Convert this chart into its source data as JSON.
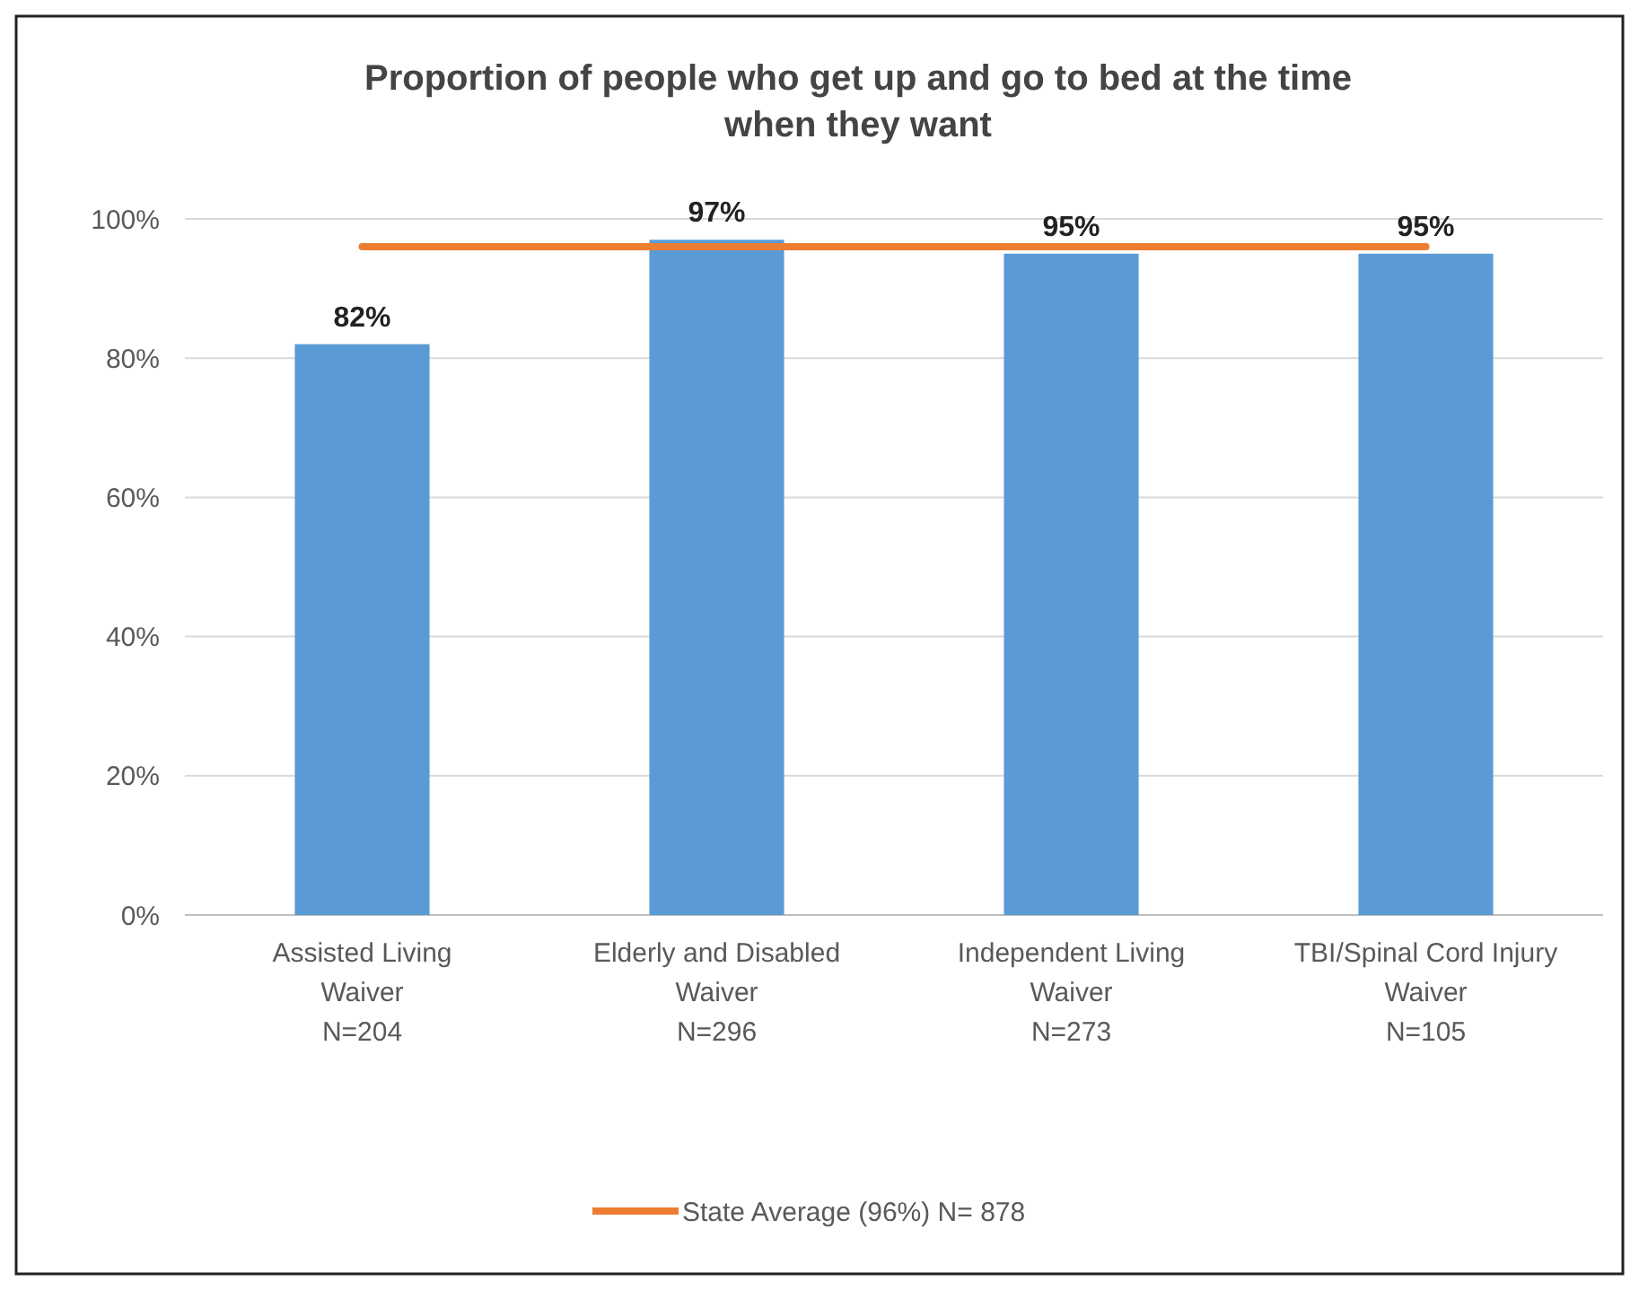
{
  "chart_data": {
    "type": "bar",
    "title": "Proportion of people who get up and go to bed at the time when they want",
    "categories": [
      "Assisted Living\nWaiver\nN=204",
      "Elderly and Disabled\nWaiver\nN=296",
      "Independent Living\nWaiver\nN=273",
      "TBI/Spinal Cord Injury\nWaiver\nN=105"
    ],
    "series": [
      {
        "color": "#5b9bd5",
        "values": [
          82,
          97,
          95,
          95
        ],
        "value_labels": [
          "82%",
          "97%",
          "95%",
          "95%"
        ]
      },
      {
        "type": "line",
        "name": "State Average (96%) N= 878",
        "color": "#ed7d31",
        "values": [
          96,
          96,
          96,
          96
        ]
      }
    ],
    "ylim": [
      0,
      100
    ],
    "yticks": [
      {
        "value": 0,
        "label": "0%"
      },
      {
        "value": 20,
        "label": "20%"
      },
      {
        "value": 40,
        "label": "40%"
      },
      {
        "value": 60,
        "label": "60%"
      },
      {
        "value": 80,
        "label": "80%"
      },
      {
        "value": 100,
        "label": "100%"
      }
    ],
    "grid": "y",
    "legend": "bottom",
    "marker": "none"
  }
}
